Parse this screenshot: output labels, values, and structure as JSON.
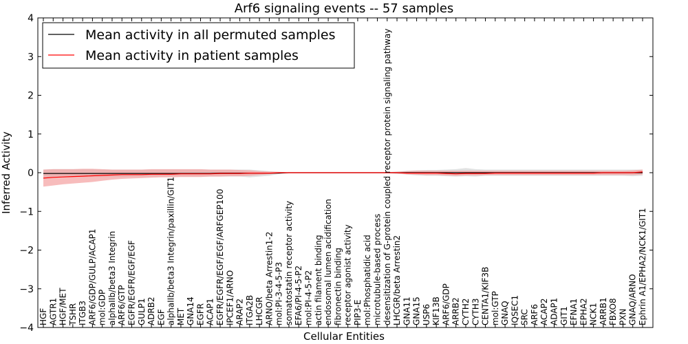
{
  "chart_data": {
    "type": "line",
    "title": "Arf6 signaling events -- 57 samples",
    "xlabel": "Cellular Entities",
    "ylabel": "Inferred Activity",
    "ylim": [
      -4,
      4
    ],
    "yticks": [
      -4,
      -3,
      -2,
      -1,
      0,
      1,
      2,
      3,
      4
    ],
    "legend_position": "top-left",
    "colors": {
      "permuted": "#000000",
      "patient": "#ff0000",
      "patient_band": "#f4a0a0",
      "permuted_band": "#c8c8c8"
    },
    "categories": [
      "HGF",
      "AGTR1",
      "HGF/MET",
      "TSHR",
      "ITGB3",
      "ARF6/GDP/GULP/ACAP1",
      "mol:GDP",
      "alphaIIb/beta3 Integrin",
      "ARF6/GTP",
      "EGFR/EGFR/EGF/EGF",
      "GULP1",
      "ADRB2",
      "EGF",
      "alphaIIb/beta3 Integrin/paxillin/GIT1",
      "MET",
      "GNA14",
      "EGFR",
      "ACAP1",
      "EGFR/EGFR/EGF/EGF/ARFGEP100",
      "IPCEF1/ARNO",
      "ARAP2",
      "ITGA2B",
      "LHCGR",
      "ARNO/beta Arrestin1-2",
      "mol:PI-3-4-5-P3",
      "somatostatin receptor activity",
      "EFA6/PI-4-5-P2",
      "mol:PI-4-5-P2",
      "actin filament binding",
      "endosomal lumen acidification",
      "fibronectin binding",
      "receptor agonist activity",
      "PIP3-E",
      "mol:Phosphatidic acid",
      "microtubule-based process",
      "desensitization of G-protein coupled receptor protein signaling pathway",
      "LHCGR/beta Arrestin2",
      "GNA11",
      "GNA15",
      "USP6",
      "KIF13B",
      "ARF6/GDP",
      "ARRB2",
      "CYTH2",
      "CYTH3",
      "CENTA1/KIF3B",
      "mol:GTP",
      "GNAQ",
      "IQSEC1",
      "SRC",
      "ARF6",
      "ACAP2",
      "ADAP1",
      "GIT1",
      "EFNA1",
      "EPHA2",
      "NCK1",
      "ARRB1",
      "FBXO8",
      "PXN",
      "GNAQ/ARNO",
      "Ephrin A1/EPHA2/NCK1/GIT1"
    ],
    "series": [
      {
        "name": "Mean activity in all permuted samples",
        "values": [
          -0.02,
          -0.02,
          -0.02,
          -0.02,
          -0.02,
          -0.02,
          -0.02,
          -0.02,
          -0.02,
          -0.02,
          -0.02,
          -0.02,
          -0.02,
          -0.02,
          -0.02,
          -0.02,
          -0.02,
          -0.02,
          -0.01,
          -0.01,
          -0.01,
          -0.01,
          -0.01,
          -0.01,
          -0.01,
          0.0,
          0.0,
          0.0,
          0.0,
          0.0,
          0.0,
          0.0,
          0.0,
          0.0,
          0.0,
          0.0,
          0.0,
          0.0,
          0.0,
          0.0,
          0.0,
          0.0,
          0.0,
          0.0,
          0.0,
          0.0,
          0.0,
          0.0,
          0.0,
          0.0,
          0.0,
          0.0,
          0.0,
          0.0,
          0.0,
          0.0,
          0.0,
          0.0,
          0.0,
          0.0,
          0.0,
          0.0
        ],
        "lower": [
          -0.12,
          -0.12,
          -0.11,
          -0.11,
          -0.11,
          -0.11,
          -0.11,
          -0.11,
          -0.11,
          -0.1,
          -0.1,
          -0.1,
          -0.1,
          -0.1,
          -0.1,
          -0.1,
          -0.1,
          -0.1,
          -0.1,
          -0.1,
          -0.1,
          -0.12,
          -0.1,
          -0.08,
          -0.03,
          -0.01,
          -0.01,
          -0.01,
          -0.01,
          -0.01,
          -0.01,
          -0.01,
          -0.01,
          -0.01,
          -0.01,
          -0.01,
          -0.03,
          -0.05,
          -0.07,
          -0.08,
          -0.08,
          -0.09,
          -0.1,
          -0.09,
          -0.1,
          -0.08,
          -0.08,
          -0.08,
          -0.08,
          -0.08,
          -0.08,
          -0.08,
          -0.08,
          -0.08,
          -0.08,
          -0.08,
          -0.08,
          -0.08,
          -0.08,
          -0.08,
          -0.09,
          -0.08
        ],
        "upper": [
          0.08,
          0.09,
          0.09,
          0.09,
          0.09,
          0.09,
          0.08,
          0.08,
          0.08,
          0.08,
          0.08,
          0.08,
          0.08,
          0.08,
          0.08,
          0.08,
          0.08,
          0.08,
          0.08,
          0.08,
          0.08,
          0.08,
          0.06,
          0.04,
          0.02,
          0.01,
          0.01,
          0.01,
          0.01,
          0.01,
          0.01,
          0.01,
          0.01,
          0.01,
          0.01,
          0.01,
          0.03,
          0.05,
          0.06,
          0.07,
          0.07,
          0.08,
          0.09,
          0.12,
          0.09,
          0.08,
          0.08,
          0.08,
          0.08,
          0.08,
          0.08,
          0.08,
          0.08,
          0.08,
          0.08,
          0.08,
          0.08,
          0.08,
          0.08,
          0.08,
          0.08,
          0.08
        ]
      },
      {
        "name": "Mean activity in patient samples",
        "values": [
          -0.14,
          -0.12,
          -0.11,
          -0.1,
          -0.09,
          -0.08,
          -0.07,
          -0.06,
          -0.05,
          -0.05,
          -0.05,
          -0.04,
          -0.04,
          -0.04,
          -0.03,
          -0.03,
          -0.03,
          -0.03,
          -0.02,
          -0.02,
          -0.02,
          -0.01,
          -0.01,
          -0.01,
          0.0,
          0.0,
          0.0,
          0.0,
          0.0,
          0.0,
          0.0,
          0.0,
          0.0,
          0.0,
          0.0,
          0.0,
          0.0,
          -0.01,
          -0.01,
          -0.01,
          -0.01,
          -0.02,
          -0.03,
          -0.02,
          -0.02,
          -0.02,
          -0.01,
          -0.01,
          -0.01,
          -0.01,
          -0.01,
          -0.01,
          -0.01,
          -0.01,
          -0.01,
          -0.01,
          -0.01,
          0.0,
          0.0,
          0.0,
          0.0,
          0.02
        ],
        "lower": [
          -0.36,
          -0.33,
          -0.3,
          -0.28,
          -0.26,
          -0.24,
          -0.21,
          -0.18,
          -0.16,
          -0.15,
          -0.14,
          -0.13,
          -0.12,
          -0.12,
          -0.11,
          -0.11,
          -0.11,
          -0.1,
          -0.1,
          -0.09,
          -0.09,
          -0.08,
          -0.06,
          -0.04,
          -0.02,
          -0.01,
          -0.01,
          -0.01,
          -0.01,
          -0.01,
          -0.01,
          -0.01,
          -0.01,
          -0.01,
          -0.01,
          -0.01,
          -0.02,
          -0.04,
          -0.05,
          -0.06,
          -0.06,
          -0.07,
          -0.08,
          -0.07,
          -0.07,
          -0.06,
          -0.06,
          -0.06,
          -0.06,
          -0.06,
          -0.06,
          -0.06,
          -0.06,
          -0.06,
          -0.06,
          -0.06,
          -0.06,
          -0.06,
          -0.06,
          -0.06,
          -0.06,
          -0.05
        ],
        "upper": [
          0.08,
          0.09,
          0.09,
          0.09,
          0.1,
          0.1,
          0.09,
          0.08,
          0.08,
          0.08,
          0.08,
          0.09,
          0.09,
          0.09,
          0.09,
          0.09,
          0.09,
          0.08,
          0.08,
          0.08,
          0.07,
          0.06,
          0.04,
          0.03,
          0.02,
          0.01,
          0.01,
          0.01,
          0.01,
          0.01,
          0.01,
          0.01,
          0.01,
          0.01,
          0.01,
          0.01,
          0.02,
          0.04,
          0.05,
          0.05,
          0.05,
          0.05,
          0.05,
          0.05,
          0.05,
          0.05,
          0.05,
          0.05,
          0.05,
          0.05,
          0.05,
          0.05,
          0.05,
          0.05,
          0.05,
          0.05,
          0.05,
          0.05,
          0.05,
          0.05,
          0.06,
          0.08
        ]
      }
    ]
  }
}
